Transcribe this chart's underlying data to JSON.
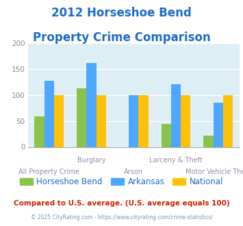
{
  "title_line1": "2012 Horseshoe Bend",
  "title_line2": "Property Crime Comparison",
  "categories": [
    "All Property Crime",
    "Burglary",
    "Arson",
    "Larceny & Theft",
    "Motor Vehicle Theft"
  ],
  "series": {
    "Horseshoe Bend": [
      58,
      113,
      0,
      44,
      22
    ],
    "Arkansas": [
      127,
      162,
      100,
      121,
      85
    ],
    "National": [
      100,
      100,
      100,
      100,
      100
    ]
  },
  "colors": {
    "Horseshoe Bend": "#8bc34a",
    "Arkansas": "#4da6ff",
    "National": "#ffc107"
  },
  "ylim": [
    0,
    200
  ],
  "yticks": [
    0,
    50,
    100,
    150,
    200
  ],
  "plot_bg_color": "#ddeef5",
  "fig_bg_color": "#ffffff",
  "title_color": "#1a6cc8",
  "subtitle_note": "Compared to U.S. average. (U.S. average equals 100)",
  "subtitle_note_color": "#cc2200",
  "copyright_note": "© 2025 CityRating.com - https://www.cityrating.com/crime-statistics/",
  "copyright_color": "#7799bb",
  "grid_color": "#ffffff",
  "legend_labels": [
    "Horseshoe Bend",
    "Arkansas",
    "National"
  ],
  "xlabel_top": [
    "",
    "Burglary",
    "",
    "Larceny & Theft",
    ""
  ],
  "xlabel_bot": [
    "All Property Crime",
    "",
    "Arson",
    "",
    "Motor Vehicle Theft"
  ]
}
